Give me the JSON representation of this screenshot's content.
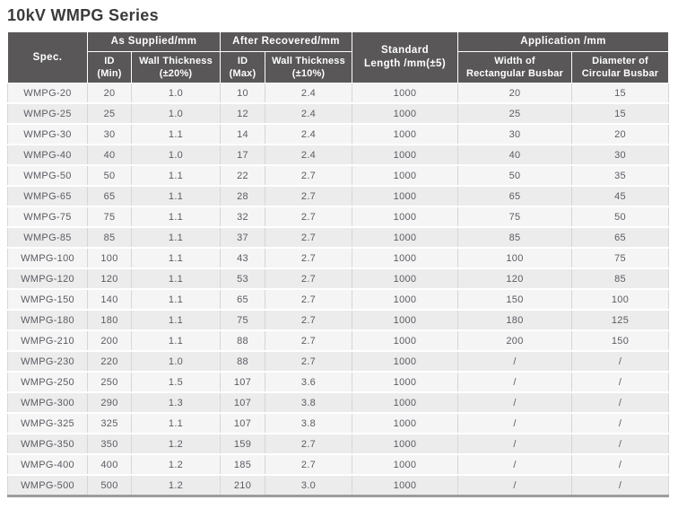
{
  "title": "10kV WMPG Series",
  "colors": {
    "header_bg": "#595757",
    "header_text": "#ffffff",
    "row_odd_bg": "#f5f5f5",
    "row_even_bg": "#ececec",
    "cell_text": "#5b5b63",
    "grid_line": "#d6d6d6",
    "bottom_border": "#9c9c9c"
  },
  "table": {
    "header": {
      "spec": "Spec.",
      "as_supplied": "As Supplied/mm",
      "after_recovered": "After Recovered/mm",
      "standard_length": "Standard\nLength /mm(±5)",
      "application": "Application /mm",
      "id_min": "ID\n(Min)",
      "wall_thickness_20": "Wall Thickness\n(±20%)",
      "id_max": "ID\n(Max)",
      "wall_thickness_10": "Wall Thickness\n(±10%)",
      "width_rect": "Width of\nRectangular Busbar",
      "dia_circ": "Diameter of\nCircular Busbar"
    },
    "rows": [
      [
        "WMPG-20",
        "20",
        "1.0",
        "10",
        "2.4",
        "1000",
        "20",
        "15"
      ],
      [
        "WMPG-25",
        "25",
        "1.0",
        "12",
        "2.4",
        "1000",
        "25",
        "15"
      ],
      [
        "WMPG-30",
        "30",
        "1.1",
        "14",
        "2.4",
        "1000",
        "30",
        "20"
      ],
      [
        "WMPG-40",
        "40",
        "1.0",
        "17",
        "2.4",
        "1000",
        "40",
        "30"
      ],
      [
        "WMPG-50",
        "50",
        "1.1",
        "22",
        "2.7",
        "1000",
        "50",
        "35"
      ],
      [
        "WMPG-65",
        "65",
        "1.1",
        "28",
        "2.7",
        "1000",
        "65",
        "45"
      ],
      [
        "WMPG-75",
        "75",
        "1.1",
        "32",
        "2.7",
        "1000",
        "75",
        "50"
      ],
      [
        "WMPG-85",
        "85",
        "1.1",
        "37",
        "2.7",
        "1000",
        "85",
        "65"
      ],
      [
        "WMPG-100",
        "100",
        "1.1",
        "43",
        "2.7",
        "1000",
        "100",
        "75"
      ],
      [
        "WMPG-120",
        "120",
        "1.1",
        "53",
        "2.7",
        "1000",
        "120",
        "85"
      ],
      [
        "WMPG-150",
        "140",
        "1.1",
        "65",
        "2.7",
        "1000",
        "150",
        "100"
      ],
      [
        "WMPG-180",
        "180",
        "1.1",
        "75",
        "2.7",
        "1000",
        "180",
        "125"
      ],
      [
        "WMPG-210",
        "200",
        "1.1",
        "88",
        "2.7",
        "1000",
        "200",
        "150"
      ],
      [
        "WMPG-230",
        "220",
        "1.0",
        "88",
        "2.7",
        "1000",
        "/",
        "/"
      ],
      [
        "WMPG-250",
        "250",
        "1.5",
        "107",
        "3.6",
        "1000",
        "/",
        "/"
      ],
      [
        "WMPG-300",
        "290",
        "1.3",
        "107",
        "3.8",
        "1000",
        "/",
        "/"
      ],
      [
        "WMPG-325",
        "325",
        "1.1",
        "107",
        "3.8",
        "1000",
        "/",
        "/"
      ],
      [
        "WMPG-350",
        "350",
        "1.2",
        "159",
        "2.7",
        "1000",
        "/",
        "/"
      ],
      [
        "WMPG-400",
        "400",
        "1.2",
        "185",
        "2.7",
        "1000",
        "/",
        "/"
      ],
      [
        "WMPG-500",
        "500",
        "1.2",
        "210",
        "3.0",
        "1000",
        "/",
        "/"
      ]
    ]
  }
}
